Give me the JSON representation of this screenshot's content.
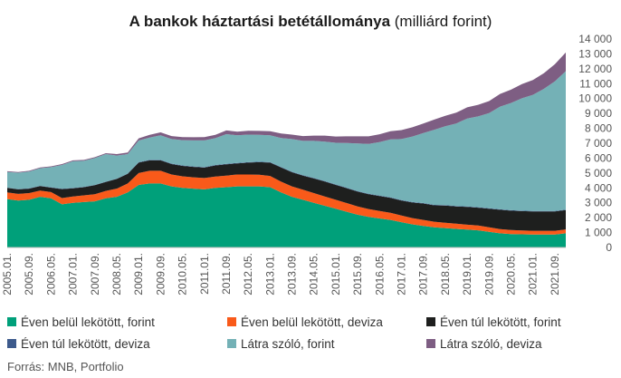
{
  "title": {
    "main": "A bankok háztartási betétállománya",
    "sub": " (milliárd forint)"
  },
  "source": "Forrás: MNB, Portfolio",
  "chart_data": {
    "type": "area",
    "stacked": true,
    "ylim": [
      0,
      14000
    ],
    "y_ticks": [
      "0",
      "1 000",
      "2 000",
      "3 000",
      "4 000",
      "5 000",
      "6 000",
      "7 000",
      "8 000",
      "9 000",
      "10 000",
      "11 000",
      "12 000",
      "13 000",
      "14 000"
    ],
    "y_axis_position": "right",
    "grid": false,
    "legend_position": "bottom",
    "x_ticks": [
      "2005.01.",
      "2005.09.",
      "2006.05.",
      "2007.01.",
      "2007.09.",
      "2008.05.",
      "2009.01.",
      "2009.09.",
      "2010.05.",
      "2011.01.",
      "2011.09.",
      "2012.05.",
      "2013.01.",
      "2013.09.",
      "2014.05.",
      "2015.01.",
      "2015.09.",
      "2016.05.",
      "2017.01.",
      "2017.09.",
      "2018.05.",
      "2019.01.",
      "2019.09.",
      "2020.05.",
      "2021.01.",
      "2021.09."
    ],
    "x": [
      "2005.01.",
      "2005.05.",
      "2005.09.",
      "2006.01.",
      "2006.05.",
      "2006.09.",
      "2007.01.",
      "2007.05.",
      "2007.09.",
      "2008.01.",
      "2008.05.",
      "2008.09.",
      "2009.01.",
      "2009.05.",
      "2009.09.",
      "2010.01.",
      "2010.05.",
      "2010.09.",
      "2011.01.",
      "2011.05.",
      "2011.09.",
      "2012.01.",
      "2012.05.",
      "2012.09.",
      "2013.01.",
      "2013.05.",
      "2013.09.",
      "2014.01.",
      "2014.05.",
      "2014.09.",
      "2015.01.",
      "2015.05.",
      "2015.09.",
      "2016.01.",
      "2016.05.",
      "2016.09.",
      "2017.01.",
      "2017.05.",
      "2017.09.",
      "2018.01.",
      "2018.05.",
      "2018.09.",
      "2019.01.",
      "2019.05.",
      "2019.09.",
      "2020.01.",
      "2020.05.",
      "2020.09.",
      "2021.01.",
      "2021.05.",
      "2021.09.",
      "2022.01."
    ],
    "series": [
      {
        "name": "Éven belül lekötött, forint",
        "color": "#00a07a",
        "values": [
          3250,
          3150,
          3200,
          3400,
          3300,
          2900,
          3000,
          3050,
          3100,
          3300,
          3400,
          3700,
          4200,
          4300,
          4300,
          4100,
          4000,
          3950,
          3900,
          4000,
          4050,
          4100,
          4100,
          4100,
          4050,
          3700,
          3400,
          3200,
          3000,
          2800,
          2600,
          2400,
          2200,
          2050,
          1950,
          1850,
          1700,
          1550,
          1450,
          1350,
          1300,
          1250,
          1200,
          1150,
          1050,
          950,
          900,
          880,
          870,
          870,
          870,
          950
        ]
      },
      {
        "name": "Éven belül lekötött, deviza",
        "color": "#f95a1a",
        "values": [
          450,
          450,
          450,
          420,
          420,
          420,
          420,
          450,
          480,
          500,
          550,
          600,
          800,
          850,
          850,
          800,
          780,
          760,
          760,
          760,
          780,
          800,
          800,
          780,
          750,
          720,
          700,
          680,
          650,
          630,
          600,
          580,
          550,
          530,
          500,
          480,
          450,
          420,
          400,
          380,
          360,
          350,
          330,
          320,
          300,
          280,
          270,
          260,
          250,
          250,
          250,
          260
        ]
      },
      {
        "name": "Éven túl lekötött, forint",
        "color": "#1e1f1e",
        "values": [
          300,
          300,
          300,
          300,
          300,
          600,
          550,
          550,
          600,
          600,
          650,
          650,
          700,
          700,
          700,
          700,
          700,
          700,
          700,
          750,
          750,
          750,
          800,
          850,
          900,
          950,
          950,
          950,
          980,
          1000,
          1000,
          1000,
          1000,
          1000,
          1000,
          1000,
          1000,
          1050,
          1100,
          1100,
          1150,
          1150,
          1200,
          1200,
          1250,
          1300,
          1300,
          1300,
          1300,
          1300,
          1300,
          1300
        ]
      },
      {
        "name": "Éven túl lekötött, deviza",
        "color": "#3d5a8c",
        "values": [
          20,
          20,
          20,
          20,
          20,
          20,
          20,
          20,
          20,
          20,
          20,
          20,
          30,
          30,
          30,
          30,
          30,
          30,
          30,
          30,
          30,
          30,
          30,
          30,
          30,
          30,
          30,
          30,
          30,
          30,
          30,
          30,
          30,
          30,
          30,
          30,
          30,
          30,
          30,
          30,
          30,
          30,
          30,
          30,
          30,
          30,
          30,
          30,
          30,
          30,
          30,
          30
        ]
      },
      {
        "name": "Látra szóló, forint",
        "color": "#74b1b6",
        "values": [
          1050,
          1100,
          1130,
          1180,
          1350,
          1600,
          1800,
          1750,
          1800,
          1850,
          1550,
          1300,
          1450,
          1500,
          1650,
          1650,
          1700,
          1750,
          1800,
          1800,
          2000,
          1850,
          1850,
          1800,
          1800,
          1950,
          2200,
          2300,
          2500,
          2650,
          2800,
          3000,
          3200,
          3350,
          3600,
          3900,
          4100,
          4400,
          4700,
          5050,
          5300,
          5550,
          5900,
          6100,
          6400,
          6900,
          7200,
          7550,
          7800,
          8200,
          8700,
          9300
        ]
      },
      {
        "name": "Látra szóló, deviza",
        "color": "#7e5e83",
        "values": [
          50,
          50,
          50,
          50,
          60,
          60,
          60,
          60,
          60,
          60,
          100,
          100,
          150,
          180,
          200,
          200,
          200,
          210,
          220,
          220,
          250,
          250,
          260,
          270,
          280,
          300,
          300,
          320,
          350,
          400,
          420,
          450,
          480,
          500,
          520,
          550,
          600,
          620,
          650,
          680,
          700,
          720,
          750,
          780,
          800,
          850,
          900,
          950,
          1000,
          1050,
          1150,
          1250
        ]
      }
    ]
  }
}
